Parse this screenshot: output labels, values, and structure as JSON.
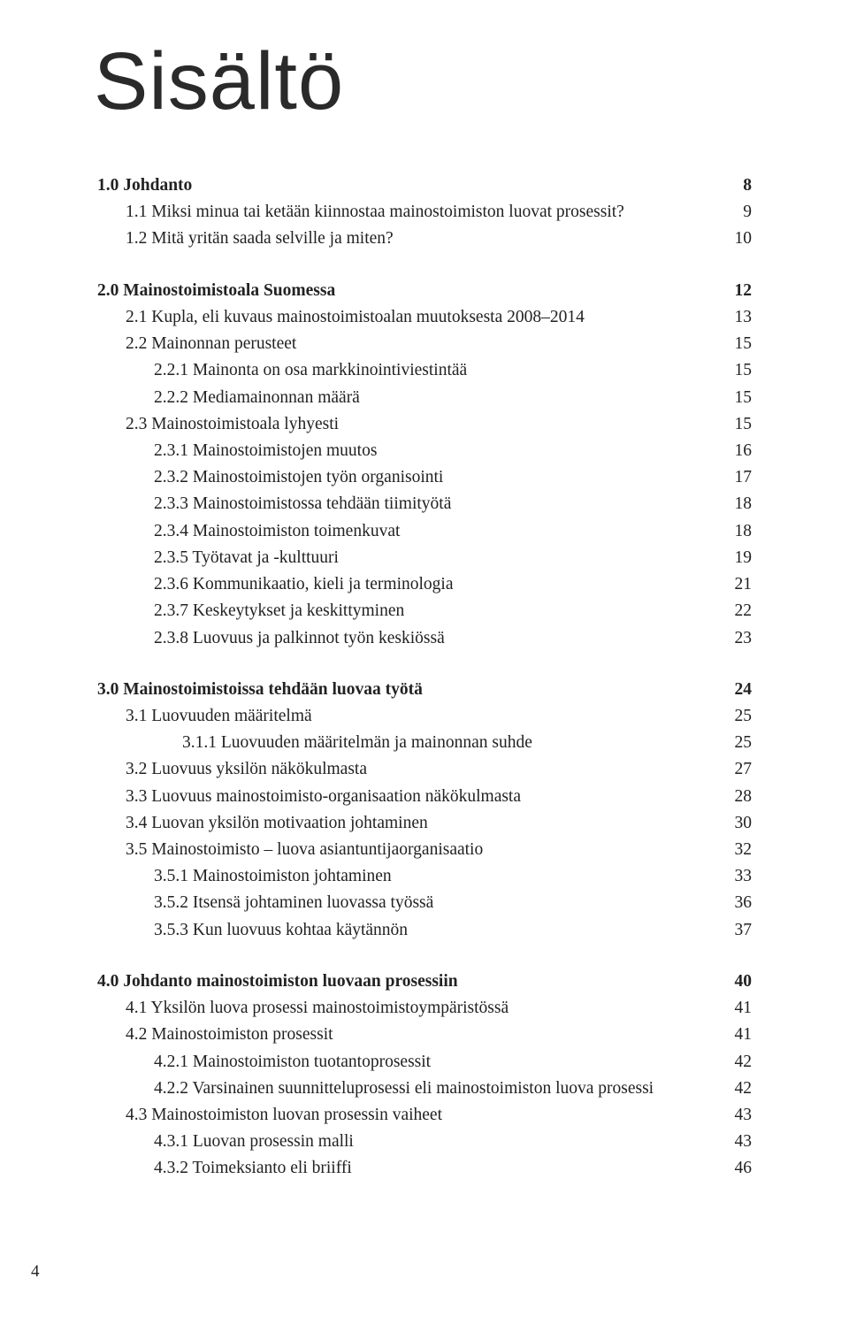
{
  "title": "Sisältö",
  "page_number": "4",
  "typography": {
    "title_font": "Helvetica Neue Light",
    "title_size_pt": 70,
    "body_font": "Georgia / Minion-like serif",
    "body_size_pt": 14,
    "text_color": "#222222",
    "background_color": "#ffffff"
  },
  "toc": [
    {
      "section": true,
      "level": 0,
      "bold": true,
      "label": "1.0 Johdanto",
      "page": "8"
    },
    {
      "level": 1,
      "label": "1.1 Miksi minua tai ketään kiinnostaa mainostoimiston luovat prosessit?",
      "page": "9"
    },
    {
      "level": 1,
      "label": "1.2 Mitä yritän saada selville ja miten?",
      "page": "10"
    },
    {
      "section": true,
      "level": 0,
      "bold": true,
      "label": "2.0 Mainostoimistoala Suomessa",
      "page": "12"
    },
    {
      "level": 1,
      "label": "2.1 Kupla, eli kuvaus mainostoimistoalan muutoksesta 2008–2014",
      "page": "13"
    },
    {
      "level": 1,
      "label": "2.2 Mainonnan perusteet",
      "page": "15"
    },
    {
      "level": 2,
      "label": "2.2.1 Mainonta on osa markkinointiviestintää",
      "page": "15"
    },
    {
      "level": 2,
      "label": "2.2.2 Mediamainonnan määrä",
      "page": "15"
    },
    {
      "level": 1,
      "label": "2.3 Mainostoimistoala lyhyesti",
      "page": "15"
    },
    {
      "level": 2,
      "label": "2.3.1 Mainostoimistojen muutos",
      "page": "16"
    },
    {
      "level": 2,
      "label": "2.3.2 Mainostoimistojen työn organisointi",
      "page": "17"
    },
    {
      "level": 2,
      "label": "2.3.3 Mainostoimistossa tehdään tiimityötä",
      "page": "18"
    },
    {
      "level": 2,
      "label": "2.3.4 Mainostoimiston toimenkuvat",
      "page": "18"
    },
    {
      "level": 2,
      "label": "2.3.5 Työtavat ja -kulttuuri",
      "page": "19"
    },
    {
      "level": 2,
      "label": "2.3.6 Kommunikaatio, kieli ja terminologia",
      "page": "21"
    },
    {
      "level": 2,
      "label": "2.3.7 Keskeytykset ja keskittyminen",
      "page": "22"
    },
    {
      "level": 2,
      "label": "2.3.8 Luovuus ja palkinnot työn keskiössä",
      "page": "23"
    },
    {
      "section": true,
      "level": 0,
      "bold": true,
      "label": "3.0 Mainostoimistoissa tehdään luovaa työtä",
      "page": "24"
    },
    {
      "level": 1,
      "label": "3.1 Luovuuden määritelmä",
      "page": "25"
    },
    {
      "level": 3,
      "label": "3.1.1 Luovuuden määritelmän ja mainonnan suhde",
      "page": "25"
    },
    {
      "level": 1,
      "label": "3.2 Luovuus yksilön näkökulmasta",
      "page": "27"
    },
    {
      "level": 1,
      "label": "3.3 Luovuus mainostoimisto-organisaation näkökulmasta",
      "page": "28"
    },
    {
      "level": 1,
      "label": "3.4 Luovan yksilön motivaation johtaminen",
      "page": "30"
    },
    {
      "level": 1,
      "label": "3.5 Mainostoimisto – luova asiantuntijaorganisaatio",
      "page": "32"
    },
    {
      "level": 2,
      "label": "3.5.1 Mainostoimiston johtaminen",
      "page": "33"
    },
    {
      "level": 2,
      "label": "3.5.2 Itsensä johtaminen luovassa työssä",
      "page": "36"
    },
    {
      "level": 2,
      "label": "3.5.3 Kun luovuus kohtaa käytännön",
      "page": "37"
    },
    {
      "section": true,
      "level": 0,
      "bold": true,
      "label": "4.0 Johdanto mainostoimiston luovaan prosessiin",
      "page": "40"
    },
    {
      "level": 1,
      "label": "4.1 Yksilön luova prosessi mainostoimistoympäristössä",
      "page": "41"
    },
    {
      "level": 1,
      "label": "4.2 Mainostoimiston prosessit",
      "page": "41"
    },
    {
      "level": 2,
      "label": "4.2.1 Mainostoimiston tuotantoprosessit",
      "page": "42"
    },
    {
      "level": 2,
      "label": "4.2.2 Varsinainen suunnitteluprosessi eli mainostoimiston luova prosessi",
      "page": "42"
    },
    {
      "level": 1,
      "label": "4.3 Mainostoimiston luovan prosessin vaiheet",
      "page": "43"
    },
    {
      "level": 2,
      "label": "4.3.1 Luovan prosessin malli",
      "page": "43"
    },
    {
      "level": 2,
      "label": "4.3.2 Toimeksianto eli briiffi",
      "page": "46"
    }
  ]
}
